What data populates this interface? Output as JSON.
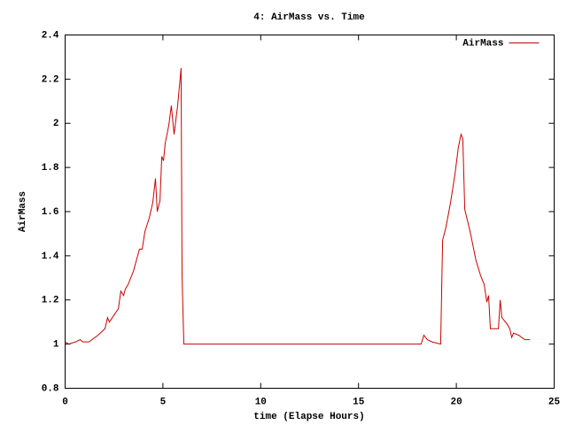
{
  "chart_data": {
    "type": "line",
    "title": "4: AirMass vs. Time",
    "xlabel": "time (Elapse Hours)",
    "ylabel": "AirMass",
    "x": [
      0,
      0.18,
      0.54,
      0.77,
      0.9,
      1.22,
      1.68,
      2.04,
      2.17,
      2.26,
      2.49,
      2.72,
      2.85,
      2.99,
      3.08,
      3.22,
      3.49,
      3.8,
      3.94,
      4.08,
      4.3,
      4.48,
      4.62,
      4.71,
      4.85,
      4.94,
      5.03,
      5.12,
      5.3,
      5.43,
      5.57,
      5.75,
      5.93,
      5.98,
      6.07,
      18.2,
      18.34,
      18.52,
      18.75,
      19.2,
      19.3,
      19.47,
      19.7,
      19.93,
      20.1,
      20.24,
      20.33,
      20.43,
      20.7,
      21.0,
      21.24,
      21.42,
      21.56,
      21.65,
      21.74,
      22.15,
      22.24,
      22.33,
      22.6,
      22.73,
      22.83,
      22.92,
      23.19,
      23.5,
      23.77
    ],
    "series": [
      {
        "name": "AirMass",
        "color": "#cc0000",
        "values": [
          1.01,
          1.0,
          1.01,
          1.02,
          1.01,
          1.01,
          1.04,
          1.07,
          1.12,
          1.1,
          1.13,
          1.16,
          1.24,
          1.22,
          1.25,
          1.27,
          1.33,
          1.43,
          1.43,
          1.51,
          1.57,
          1.64,
          1.75,
          1.6,
          1.65,
          1.85,
          1.83,
          1.91,
          1.99,
          2.08,
          1.95,
          2.08,
          2.25,
          1.31,
          1.0,
          1.0,
          1.04,
          1.02,
          1.01,
          1.0,
          1.47,
          1.53,
          1.64,
          1.77,
          1.89,
          1.95,
          1.93,
          1.61,
          1.51,
          1.38,
          1.31,
          1.27,
          1.19,
          1.22,
          1.07,
          1.07,
          1.2,
          1.12,
          1.09,
          1.07,
          1.03,
          1.05,
          1.04,
          1.02,
          1.02
        ]
      }
    ],
    "xlim": [
      0,
      25
    ],
    "xticks": [
      0,
      5,
      10,
      15,
      20,
      25
    ],
    "ylim": [
      0.8,
      2.4
    ],
    "yticks": [
      0.8,
      1,
      1.2,
      1.4,
      1.6,
      1.8,
      2,
      2.2,
      2.4
    ],
    "legend": "top-right"
  }
}
